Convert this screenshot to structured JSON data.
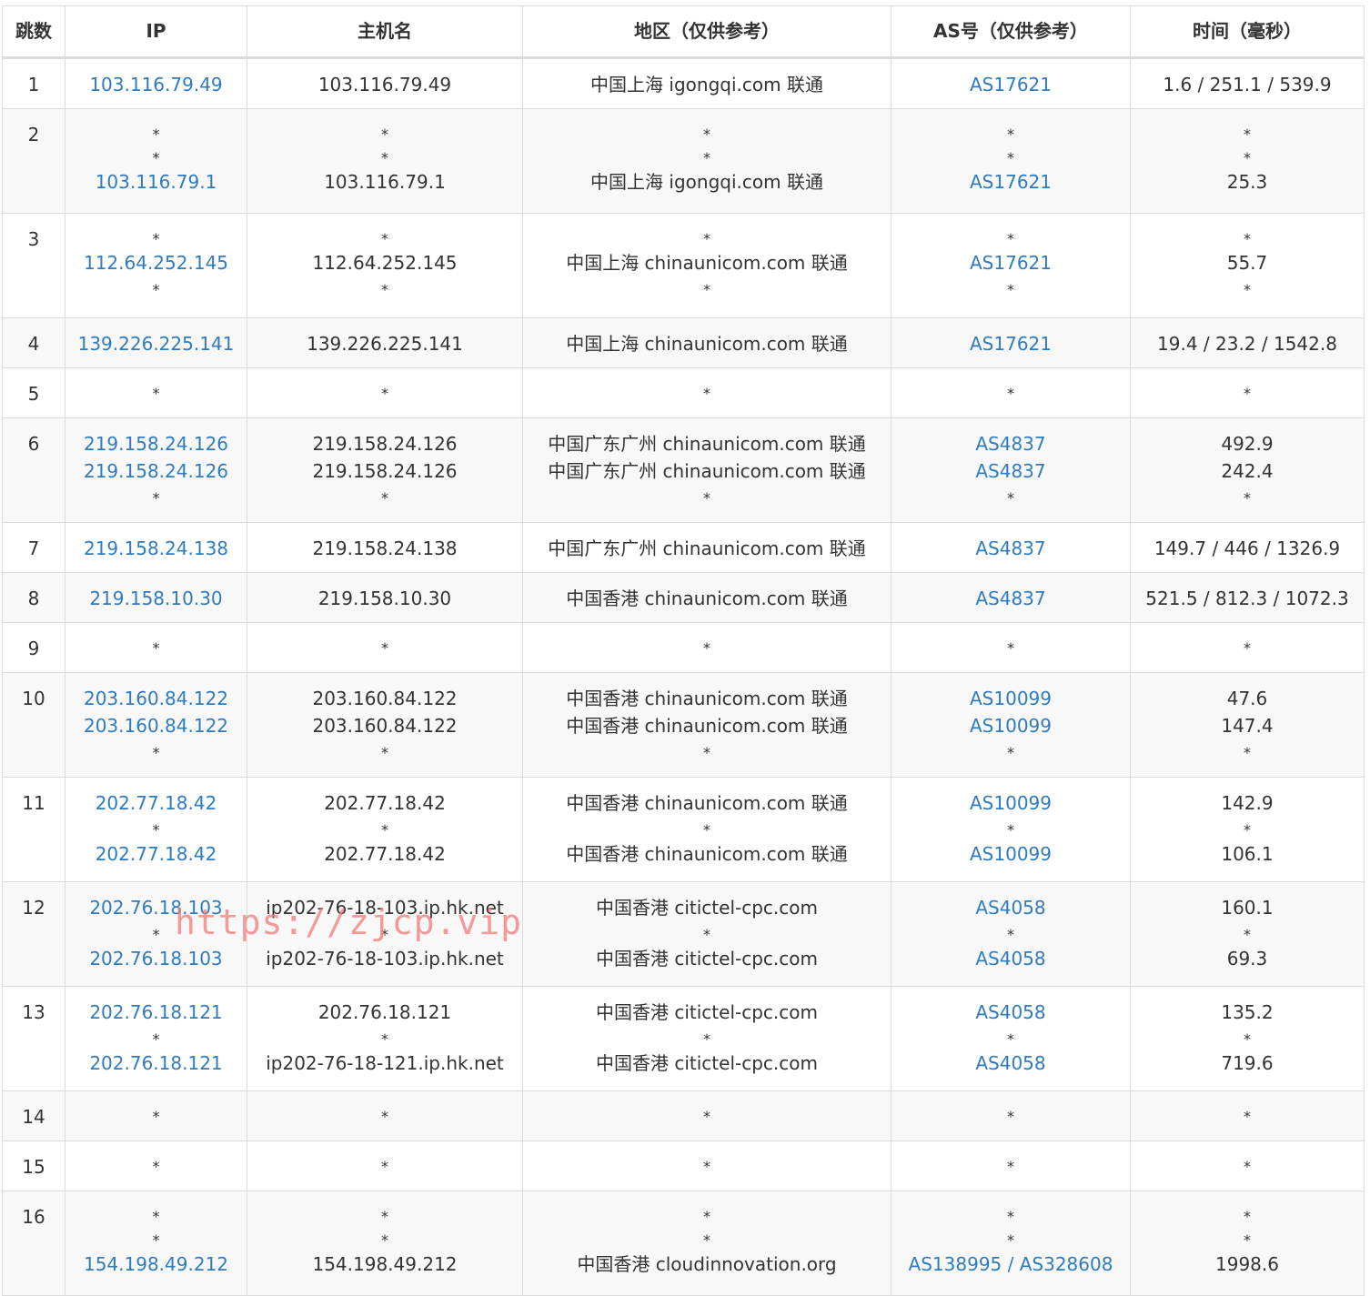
{
  "headers": {
    "hop": "跳数",
    "ip": "IP",
    "host": "主机名",
    "region": "地区（仅供参考）",
    "as": "AS号（仅供参考）",
    "time": "时间（毫秒）"
  },
  "rows": [
    {
      "hop": "1",
      "lines": [
        {
          "ip": "103.116.79.49",
          "host": "103.116.79.49",
          "region": "中国上海 igongqi.com 联通",
          "as": "AS17621",
          "time": "1.6 / 251.1 / 539.9"
        }
      ]
    },
    {
      "hop": "2",
      "lines": [
        {
          "ip": "*",
          "host": "*",
          "region": "*",
          "as": "*",
          "time": "*"
        },
        {
          "ip": "*",
          "host": "*",
          "region": "*",
          "as": "*",
          "time": "*"
        },
        {
          "ip": "103.116.79.1",
          "host": "103.116.79.1",
          "region": "中国上海 igongqi.com 联通",
          "as": "AS17621",
          "time": "25.3"
        }
      ]
    },
    {
      "hop": "3",
      "lines": [
        {
          "ip": "*",
          "host": "*",
          "region": "*",
          "as": "*",
          "time": "*"
        },
        {
          "ip": "112.64.252.145",
          "host": "112.64.252.145",
          "region": "中国上海 chinaunicom.com 联通",
          "as": "AS17621",
          "time": "55.7"
        },
        {
          "ip": "*",
          "host": "*",
          "region": "*",
          "as": "*",
          "time": "*"
        }
      ]
    },
    {
      "hop": "4",
      "lines": [
        {
          "ip": "139.226.225.141",
          "host": "139.226.225.141",
          "region": "中国上海 chinaunicom.com 联通",
          "as": "AS17621",
          "time": "19.4 / 23.2 / 1542.8"
        }
      ]
    },
    {
      "hop": "5",
      "lines": [
        {
          "ip": "*",
          "host": "*",
          "region": "*",
          "as": "*",
          "time": "*"
        }
      ]
    },
    {
      "hop": "6",
      "lines": [
        {
          "ip": "219.158.24.126",
          "host": "219.158.24.126",
          "region": "中国广东广州 chinaunicom.com 联通",
          "as": "AS4837",
          "time": "492.9"
        },
        {
          "ip": "219.158.24.126",
          "host": "219.158.24.126",
          "region": "中国广东广州 chinaunicom.com 联通",
          "as": "AS4837",
          "time": "242.4"
        },
        {
          "ip": "*",
          "host": "*",
          "region": "*",
          "as": "*",
          "time": "*"
        }
      ]
    },
    {
      "hop": "7",
      "lines": [
        {
          "ip": "219.158.24.138",
          "host": "219.158.24.138",
          "region": "中国广东广州 chinaunicom.com 联通",
          "as": "AS4837",
          "time": "149.7 / 446 / 1326.9"
        }
      ]
    },
    {
      "hop": "8",
      "lines": [
        {
          "ip": "219.158.10.30",
          "host": "219.158.10.30",
          "region": "中国香港 chinaunicom.com 联通",
          "as": "AS4837",
          "time": "521.5 / 812.3 / 1072.3"
        }
      ]
    },
    {
      "hop": "9",
      "lines": [
        {
          "ip": "*",
          "host": "*",
          "region": "*",
          "as": "*",
          "time": "*"
        }
      ]
    },
    {
      "hop": "10",
      "lines": [
        {
          "ip": "203.160.84.122",
          "host": "203.160.84.122",
          "region": "中国香港 chinaunicom.com 联通",
          "as": "AS10099",
          "time": "47.6"
        },
        {
          "ip": "203.160.84.122",
          "host": "203.160.84.122",
          "region": "中国香港 chinaunicom.com 联通",
          "as": "AS10099",
          "time": "147.4"
        },
        {
          "ip": "*",
          "host": "*",
          "region": "*",
          "as": "*",
          "time": "*"
        }
      ]
    },
    {
      "hop": "11",
      "lines": [
        {
          "ip": "202.77.18.42",
          "host": "202.77.18.42",
          "region": "中国香港 chinaunicom.com 联通",
          "as": "AS10099",
          "time": "142.9"
        },
        {
          "ip": "*",
          "host": "*",
          "region": "*",
          "as": "*",
          "time": "*"
        },
        {
          "ip": "202.77.18.42",
          "host": "202.77.18.42",
          "region": "中国香港 chinaunicom.com 联通",
          "as": "AS10099",
          "time": "106.1"
        }
      ]
    },
    {
      "hop": "12",
      "lines": [
        {
          "ip": "202.76.18.103",
          "host": "ip202-76-18-103.ip.hk.net",
          "region": "中国香港 citictel-cpc.com",
          "as": "AS4058",
          "time": "160.1"
        },
        {
          "ip": "*",
          "host": "*",
          "region": "*",
          "as": "*",
          "time": "*"
        },
        {
          "ip": "202.76.18.103",
          "host": "ip202-76-18-103.ip.hk.net",
          "region": "中国香港 citictel-cpc.com",
          "as": "AS4058",
          "time": "69.3"
        }
      ]
    },
    {
      "hop": "13",
      "lines": [
        {
          "ip": "202.76.18.121",
          "host": "202.76.18.121",
          "region": "中国香港 citictel-cpc.com",
          "as": "AS4058",
          "time": "135.2"
        },
        {
          "ip": "*",
          "host": "*",
          "region": "*",
          "as": "*",
          "time": "*"
        },
        {
          "ip": "202.76.18.121",
          "host": "ip202-76-18-121.ip.hk.net",
          "region": "中国香港 citictel-cpc.com",
          "as": "AS4058",
          "time": "719.6"
        }
      ]
    },
    {
      "hop": "14",
      "lines": [
        {
          "ip": "*",
          "host": "*",
          "region": "*",
          "as": "*",
          "time": "*"
        }
      ]
    },
    {
      "hop": "15",
      "lines": [
        {
          "ip": "*",
          "host": "*",
          "region": "*",
          "as": "*",
          "time": "*"
        }
      ]
    },
    {
      "hop": "16",
      "lines": [
        {
          "ip": "*",
          "host": "*",
          "region": "*",
          "as": "*",
          "time": "*"
        },
        {
          "ip": "*",
          "host": "*",
          "region": "*",
          "as": "*",
          "time": "*"
        },
        {
          "ip": "154.198.49.212",
          "host": "154.198.49.212",
          "region": "中国香港 cloudinnovation.org",
          "as": "AS138995 / AS328608",
          "time": "1998.6"
        }
      ]
    }
  ],
  "watermark": "https://zjcp.vip",
  "colors": {
    "link": "#2f7bbf",
    "text": "#333333",
    "border": "#dcdcdc",
    "stripe": "#f8f8f8",
    "watermark": "#f47878"
  }
}
